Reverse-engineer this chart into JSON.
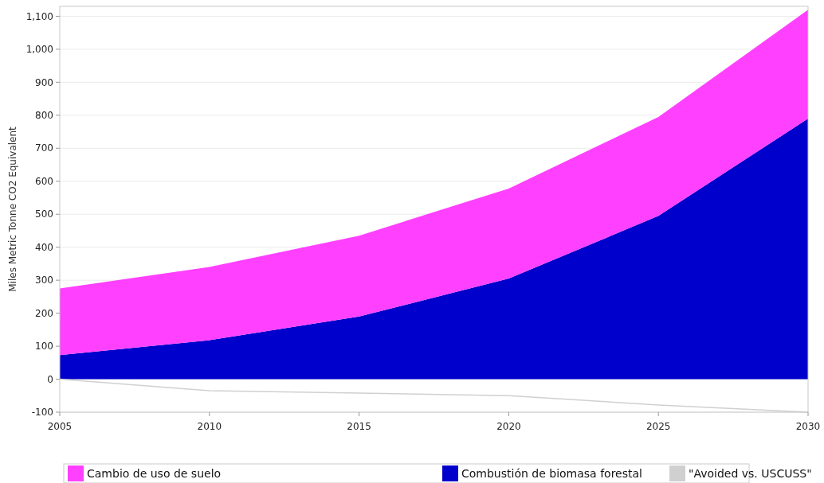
{
  "chart_data": {
    "type": "area",
    "ylabel": "Miles Metric Tonne CO2 Equivalent",
    "x": [
      2005,
      2010,
      2015,
      2020,
      2025,
      2030
    ],
    "stacked": true,
    "series": [
      {
        "name": "Combustión de biomasa forestal",
        "color": "#0000cc",
        "values": [
          73,
          118,
          190,
          305,
          495,
          790
        ]
      },
      {
        "name": "Cambio de uso de suelo",
        "color": "#ff40ff",
        "values": [
          202,
          222,
          245,
          273,
          300,
          330
        ]
      },
      {
        "name": "\"Avoided vs. USCUSS\"",
        "type": "line",
        "color": "#d0d0d0",
        "values": [
          0,
          -35,
          -42,
          -50,
          -78,
          -100
        ]
      }
    ],
    "xlim": [
      2005,
      2030
    ],
    "xticks": [
      2005,
      2010,
      2015,
      2020,
      2025,
      2030
    ],
    "ylim": [
      -100,
      1130
    ],
    "yticks": [
      {
        "value": -100,
        "label": "-100"
      },
      0,
      100,
      200,
      300,
      400,
      500,
      600,
      700,
      800,
      900,
      {
        "value": 1000,
        "label": "1,000"
      },
      {
        "value": 1100,
        "label": "1,100"
      }
    ],
    "grid": "y",
    "legend": "bottom"
  }
}
